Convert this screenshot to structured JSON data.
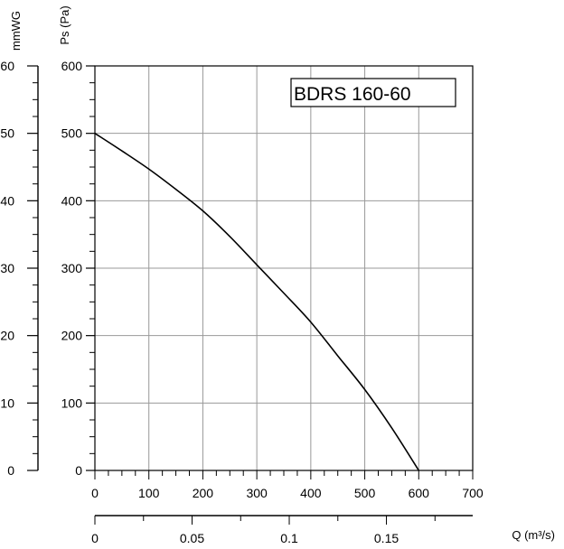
{
  "chart_data": {
    "type": "line",
    "title": "BDRS 160-60",
    "x_axis": {
      "label": "",
      "range": [
        0,
        700
      ],
      "ticks": [
        "0",
        "100",
        "200",
        "300",
        "400",
        "500",
        "600",
        "700"
      ]
    },
    "q_axis": {
      "label": "Q (m³/s)",
      "range": [
        0,
        0.1944
      ],
      "ticks": [
        {
          "value": 0,
          "label": "0"
        },
        {
          "value": 0.05,
          "label": "0.05"
        },
        {
          "value": 0.1,
          "label": "0.1"
        },
        {
          "value": 0.15,
          "label": "0.15"
        }
      ]
    },
    "y_axis": {
      "label": "Ps (Pa)",
      "range": [
        0,
        600
      ],
      "ticks": [
        "0",
        "100",
        "200",
        "300",
        "400",
        "500",
        "600"
      ]
    },
    "y2_axis": {
      "label": "mmWG",
      "range": [
        0,
        60
      ],
      "ticks": [
        "0",
        "10",
        "20",
        "30",
        "40",
        "50",
        "60"
      ]
    },
    "grid": true,
    "series": [
      {
        "x": [
          0,
          50,
          100,
          150,
          200,
          250,
          300,
          350,
          400,
          450,
          500,
          550,
          600
        ],
        "y": [
          500,
          474,
          447,
          417,
          385,
          347,
          305,
          263,
          220,
          170,
          120,
          63,
          0
        ]
      }
    ]
  }
}
